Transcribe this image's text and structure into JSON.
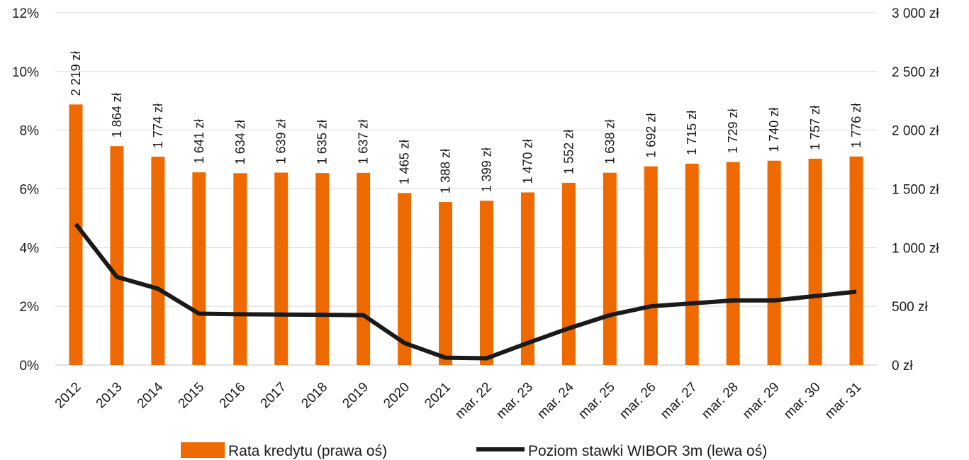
{
  "colors": {
    "bar": "#EE6A00",
    "line": "#1A1A1A",
    "grid": "#D9D9D9",
    "axis": "#BFBFBF"
  },
  "chart_data": {
    "type": "bar",
    "categories": [
      "2012",
      "2013",
      "2014",
      "2015",
      "2016",
      "2017",
      "2018",
      "2019",
      "2020",
      "2021",
      "mar. 22",
      "mar. 23",
      "mar. 24",
      "mar. 25",
      "mar. 26",
      "mar. 27",
      "mar. 28",
      "mar. 29",
      "mar. 30",
      "mar. 31"
    ],
    "series": [
      {
        "name": "Rata kredytu (prawa oś)",
        "type": "bar",
        "axis": "right",
        "values": [
          2219,
          1864,
          1774,
          1641,
          1634,
          1639,
          1635,
          1637,
          1465,
          1388,
          1399,
          1470,
          1552,
          1638,
          1692,
          1715,
          1729,
          1740,
          1757,
          1776
        ],
        "data_labels": [
          "2 219 zł",
          "1 864 zł",
          "1 774 zł",
          "1 641 zł",
          "1 634 zł",
          "1 639 zł",
          "1 635 zł",
          "1 637 zł",
          "1 465 zł",
          "1 388 zł",
          "1 399 zł",
          "1 470 zł",
          "1 552 zł",
          "1 638 zł",
          "1 692 zł",
          "1 715 zł",
          "1 729 zł",
          "1 740 zł",
          "1 757 zł",
          "1 776 zł"
        ]
      },
      {
        "name": "Poziom stawki WIBOR 3m (lewa oś)",
        "type": "line",
        "axis": "left",
        "values": [
          4.8,
          3.0,
          2.6,
          1.75,
          1.73,
          1.72,
          1.71,
          1.7,
          0.75,
          0.25,
          0.23,
          0.75,
          1.25,
          1.7,
          2.0,
          2.1,
          2.2,
          2.2,
          2.35,
          2.5
        ]
      }
    ],
    "left_axis": {
      "ylim": [
        0,
        12
      ],
      "ticks": [
        0,
        2,
        4,
        6,
        8,
        10,
        12
      ],
      "tick_labels": [
        "0%",
        "2%",
        "4%",
        "6%",
        "8%",
        "10%",
        "12%"
      ]
    },
    "right_axis": {
      "ylim": [
        0,
        3000
      ],
      "ticks": [
        0,
        500,
        1000,
        1500,
        2000,
        2500,
        3000
      ],
      "tick_labels": [
        "0 zł",
        "500 zł",
        "1 000 zł",
        "1 500 zł",
        "2 000 zł",
        "2 500 zł",
        "3 000 zł"
      ]
    },
    "grid": true,
    "legend_position": "bottom"
  }
}
